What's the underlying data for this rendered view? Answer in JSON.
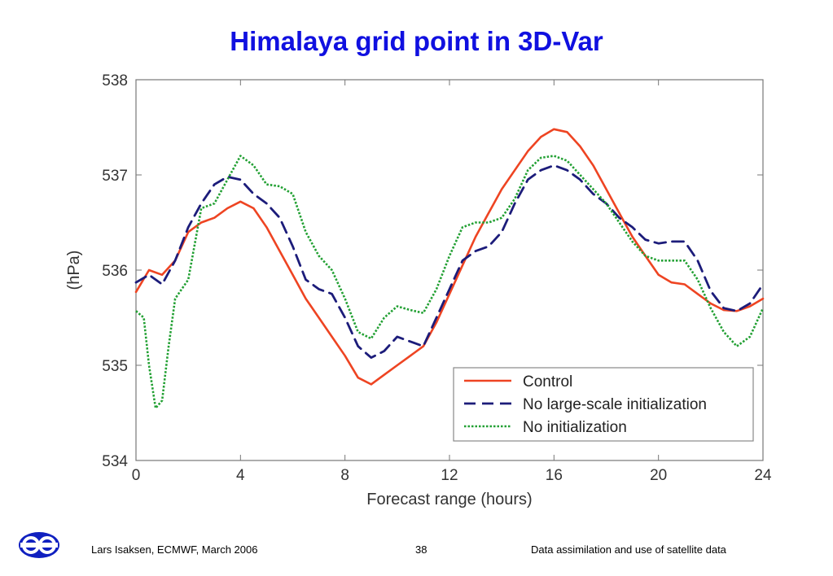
{
  "slide": {
    "title": "Himalaya grid point in 3D-Var",
    "footer_left": "Lars Isaksen, ECMWF, March 2006",
    "page_number": "38",
    "footer_right": "Data assimilation and use of satellite data"
  },
  "colors": {
    "title": "#1010e0",
    "control": "#ee4422",
    "no_large_scale": "#1c1c7a",
    "no_init": "#22a033",
    "logo": "#1020c0"
  },
  "icons": {
    "logo": "ecmwf-logo-icon"
  },
  "chart_data": {
    "type": "line",
    "xlabel": "Forecast range (hours)",
    "ylabel": "(hPa)",
    "xlim": [
      0,
      24
    ],
    "ylim": [
      534,
      538
    ],
    "xticks": [
      0,
      4,
      8,
      12,
      16,
      20,
      24
    ],
    "yticks": [
      534,
      535,
      536,
      537,
      538
    ],
    "grid": false,
    "legend": "bottom-right",
    "series": [
      {
        "name": "Control",
        "style": "solid",
        "x": [
          0,
          0.5,
          1,
          1.5,
          2,
          2.5,
          3,
          3.5,
          4,
          4.5,
          5,
          5.5,
          6,
          6.5,
          7,
          7.5,
          8,
          8.5,
          9,
          9.5,
          10,
          10.5,
          11,
          11.5,
          12,
          12.5,
          13,
          13.5,
          14,
          14.5,
          15,
          15.5,
          16,
          16.5,
          17,
          17.5,
          18,
          18.5,
          19,
          19.5,
          20,
          20.5,
          21,
          21.5,
          22,
          22.5,
          23,
          23.5,
          24
        ],
        "y": [
          535.77,
          536.0,
          535.95,
          536.1,
          536.4,
          536.5,
          536.55,
          536.65,
          536.72,
          536.65,
          536.45,
          536.2,
          535.95,
          535.7,
          535.5,
          535.3,
          535.1,
          534.87,
          534.8,
          534.9,
          535.0,
          535.1,
          535.2,
          535.45,
          535.75,
          536.05,
          536.35,
          536.6,
          536.85,
          537.05,
          537.25,
          537.4,
          537.48,
          537.45,
          537.3,
          537.1,
          536.85,
          536.6,
          536.35,
          536.15,
          535.95,
          535.87,
          535.85,
          535.75,
          535.65,
          535.58,
          535.57,
          535.62,
          535.7
        ]
      },
      {
        "name": "No large-scale initialization",
        "style": "dashed",
        "x": [
          0,
          0.5,
          1,
          1.5,
          2,
          2.5,
          3,
          3.5,
          4,
          4.5,
          5,
          5.5,
          6,
          6.5,
          7,
          7.5,
          8,
          8.5,
          9,
          9.5,
          10,
          10.5,
          11,
          11.5,
          12,
          12.5,
          13,
          13.5,
          14,
          14.5,
          15,
          15.5,
          16,
          16.5,
          17,
          17.5,
          18,
          18.5,
          19,
          19.5,
          20,
          20.5,
          21,
          21.5,
          22,
          22.5,
          23,
          23.5,
          24
        ],
        "y": [
          535.87,
          535.95,
          535.85,
          536.1,
          536.45,
          536.7,
          536.9,
          536.98,
          536.95,
          536.8,
          536.7,
          536.55,
          536.25,
          535.9,
          535.8,
          535.75,
          535.5,
          535.2,
          535.08,
          535.15,
          535.3,
          535.25,
          535.2,
          535.5,
          535.8,
          536.1,
          536.2,
          536.25,
          536.4,
          536.7,
          536.95,
          537.05,
          537.1,
          537.05,
          536.95,
          536.8,
          536.7,
          536.55,
          536.45,
          536.32,
          536.28,
          536.3,
          536.3,
          536.1,
          535.78,
          535.6,
          535.57,
          535.65,
          535.85
        ]
      },
      {
        "name": "No initialization",
        "style": "dotted",
        "x": [
          0,
          0.3,
          0.5,
          0.75,
          1,
          1.25,
          1.5,
          2,
          2.5,
          3,
          3.5,
          4,
          4.5,
          5,
          5.5,
          6,
          6.5,
          7,
          7.5,
          8,
          8.5,
          9,
          9.5,
          10,
          10.5,
          11,
          11.5,
          12,
          12.5,
          13,
          13.5,
          14,
          14.5,
          15,
          15.5,
          16,
          16.5,
          17,
          17.5,
          18,
          18.5,
          19,
          19.5,
          20,
          20.5,
          21,
          21.5,
          22,
          22.5,
          23,
          23.5,
          24
        ],
        "y": [
          535.57,
          535.5,
          535.0,
          534.55,
          534.63,
          535.2,
          535.7,
          535.9,
          536.65,
          536.7,
          536.95,
          537.2,
          537.1,
          536.9,
          536.88,
          536.8,
          536.4,
          536.15,
          536.0,
          535.7,
          535.35,
          535.28,
          535.5,
          535.62,
          535.58,
          535.55,
          535.8,
          536.15,
          536.45,
          536.5,
          536.5,
          536.55,
          536.75,
          537.05,
          537.18,
          537.2,
          537.15,
          537.0,
          536.85,
          536.7,
          536.5,
          536.3,
          536.15,
          536.1,
          536.1,
          536.1,
          535.9,
          535.6,
          535.35,
          535.2,
          535.3,
          535.6
        ]
      }
    ]
  }
}
